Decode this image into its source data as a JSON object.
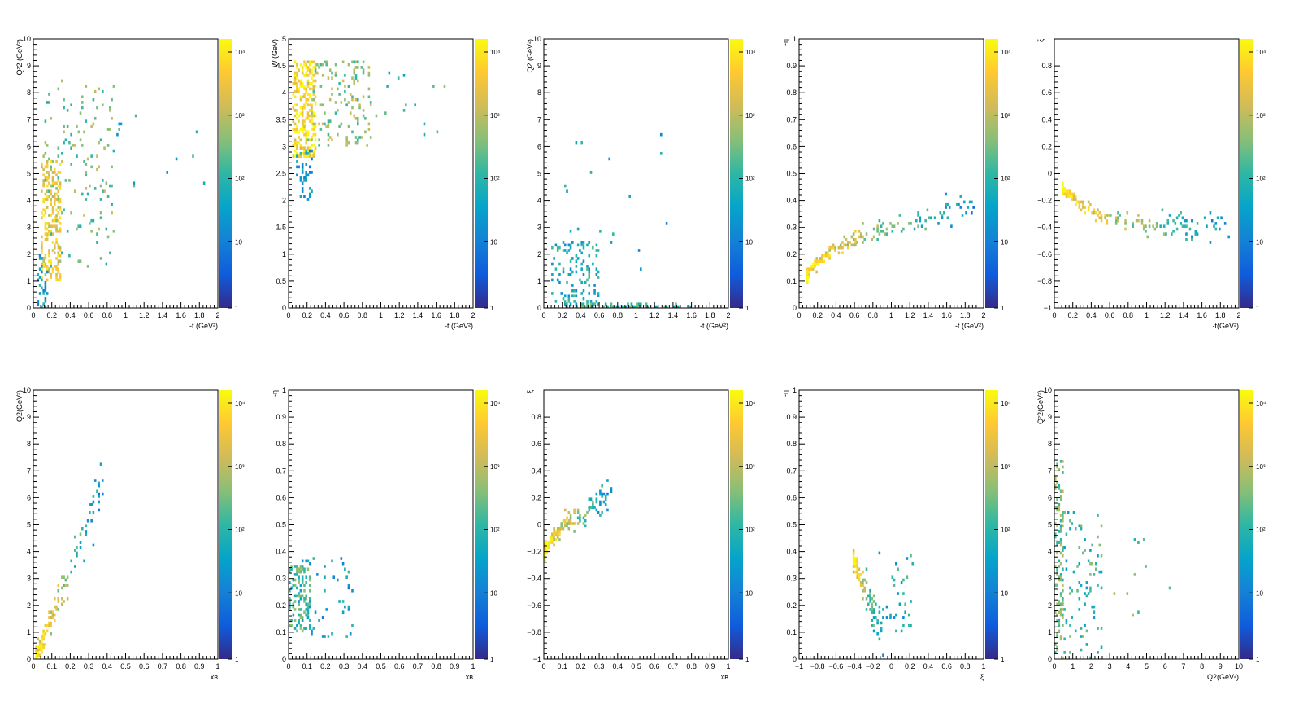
{
  "colorbar": {
    "stops": [
      "#352a87",
      "#0f5cdd",
      "#1481d6",
      "#06a4ca",
      "#2eb7a4",
      "#87bf77",
      "#d1bb59",
      "#fec832",
      "#f9fb0e"
    ],
    "ticks": [
      "1",
      "10",
      "10²",
      "10³",
      "10⁴"
    ]
  },
  "chart_data": [
    {
      "type": "heatmap",
      "xlabel": "-t (GeV²)",
      "ylabel": "Q²2 (GeV²)",
      "xlim": [
        0,
        2
      ],
      "ylim": [
        0,
        10
      ],
      "xticks": [
        0,
        0.2,
        0.4,
        0.6,
        0.8,
        1,
        1.2,
        1.4,
        1.6,
        1.8,
        2
      ],
      "yticks": [
        0,
        1,
        2,
        3,
        4,
        5,
        6,
        7,
        8,
        9,
        10
      ],
      "blobs": [
        {
          "x": [
            0.08,
            0.3
          ],
          "y": [
            1.0,
            5.5
          ],
          "n": 220,
          "level": 0.82
        },
        {
          "x": [
            0.1,
            0.9
          ],
          "y": [
            1.5,
            8.5
          ],
          "n": 150,
          "level": 0.6
        },
        {
          "x": [
            0.05,
            0.15
          ],
          "y": [
            0.0,
            2.0
          ],
          "n": 40,
          "level": 0.35
        },
        {
          "x": [
            0.9,
            1.9
          ],
          "y": [
            4.5,
            7.5
          ],
          "n": 12,
          "level": 0.45
        }
      ]
    },
    {
      "type": "heatmap",
      "xlabel": "-t (GeV²)",
      "ylabel": "W (GeV)",
      "xlim": [
        0,
        2
      ],
      "ylim": [
        0,
        5
      ],
      "xticks": [
        0,
        0.2,
        0.4,
        0.6,
        0.8,
        1,
        1.2,
        1.4,
        1.6,
        1.8,
        2
      ],
      "yticks": [
        0,
        0.5,
        1,
        1.5,
        2,
        2.5,
        3,
        3.5,
        4,
        4.5,
        5
      ],
      "blobs": [
        {
          "x": [
            0.05,
            0.3
          ],
          "y": [
            2.8,
            4.6
          ],
          "n": 260,
          "level": 0.9
        },
        {
          "x": [
            0.2,
            0.9
          ],
          "y": [
            3.0,
            4.6
          ],
          "n": 150,
          "level": 0.62
        },
        {
          "x": [
            0.08,
            0.25
          ],
          "y": [
            2.0,
            3.0
          ],
          "n": 50,
          "level": 0.35
        },
        {
          "x": [
            0.9,
            1.9
          ],
          "y": [
            3.2,
            4.4
          ],
          "n": 14,
          "level": 0.5
        }
      ]
    },
    {
      "type": "heatmap",
      "xlabel": "-t (GeV²)",
      "ylabel": "Q2 (GeV²)",
      "xlim": [
        0,
        2
      ],
      "ylim": [
        0,
        10
      ],
      "xticks": [
        0,
        0.2,
        0.4,
        0.6,
        0.8,
        1,
        1.2,
        1.4,
        1.6,
        1.8,
        2
      ],
      "yticks": [
        0,
        1,
        2,
        3,
        4,
        5,
        6,
        7,
        8,
        9,
        10
      ],
      "blobs": [
        {
          "x": [
            0.08,
            0.6
          ],
          "y": [
            0.0,
            2.5
          ],
          "n": 120,
          "level": 0.42
        },
        {
          "x": [
            0.2,
            1.6
          ],
          "y": [
            0.0,
            0.15
          ],
          "n": 60,
          "level": 0.5
        },
        {
          "x": [
            0.2,
            1.4
          ],
          "y": [
            1.0,
            6.5
          ],
          "n": 18,
          "level": 0.38
        }
      ]
    },
    {
      "type": "heatmap",
      "xlabel": "-t (GeV²)",
      "ylabel": "-η",
      "xlim": [
        0,
        2
      ],
      "ylim": [
        0,
        1
      ],
      "xticks": [
        0,
        0.2,
        0.4,
        0.6,
        0.8,
        1,
        1.2,
        1.4,
        1.6,
        1.8,
        2
      ],
      "yticks": [
        0,
        0.1,
        0.2,
        0.3,
        0.4,
        0.5,
        0.6,
        0.7,
        0.8,
        0.9,
        1
      ],
      "curve": {
        "fn": "sqrt",
        "x0": 0.08,
        "x1": 1.9,
        "y0": 0.1,
        "span": 0.28,
        "n": 200,
        "spread": 0.025
      }
    },
    {
      "type": "heatmap",
      "xlabel": "-t(GeV²)",
      "ylabel": "ξ",
      "xlim": [
        0,
        2
      ],
      "ylim": [
        -1,
        1
      ],
      "xticks": [
        0,
        0.2,
        0.4,
        0.6,
        0.8,
        1,
        1.2,
        1.4,
        1.6,
        1.8,
        2
      ],
      "yticks": [
        -1,
        -0.8,
        -0.6,
        -0.4,
        -0.2,
        0,
        0.2,
        0.4,
        0.6,
        0.8
      ],
      "curve": {
        "fn": "decay",
        "x0": 0.08,
        "x1": 1.9,
        "y0": -0.1,
        "span": -0.3,
        "n": 200,
        "spread": 0.05
      }
    },
    {
      "type": "heatmap",
      "xlabel": "xʙ",
      "ylabel": "Q2(GeV²)",
      "xlim": [
        0,
        1
      ],
      "ylim": [
        0,
        10
      ],
      "xticks": [
        0,
        0.1,
        0.2,
        0.3,
        0.4,
        0.5,
        0.6,
        0.7,
        0.8,
        0.9,
        1
      ],
      "yticks": [
        0,
        1,
        2,
        3,
        4,
        5,
        6,
        7,
        8,
        9,
        10
      ],
      "curve": {
        "fn": "linear",
        "x0": 0.01,
        "x1": 0.38,
        "y0": 0.0,
        "span": 6.5,
        "n": 150,
        "spread": 0.5
      }
    },
    {
      "type": "heatmap",
      "xlabel": "xʙ",
      "ylabel": "-η",
      "xlim": [
        0,
        1
      ],
      "ylim": [
        0,
        1
      ],
      "xticks": [
        0,
        0.1,
        0.2,
        0.3,
        0.4,
        0.5,
        0.6,
        0.7,
        0.8,
        0.9,
        1
      ],
      "yticks": [
        0,
        0.1,
        0.2,
        0.3,
        0.4,
        0.5,
        0.6,
        0.7,
        0.8,
        0.9,
        1
      ],
      "blobs": [
        {
          "x": [
            0.0,
            0.12
          ],
          "y": [
            0.1,
            0.35
          ],
          "n": 120,
          "level": 0.52
        },
        {
          "x": [
            0.05,
            0.35
          ],
          "y": [
            0.08,
            0.38
          ],
          "n": 60,
          "level": 0.38
        }
      ]
    },
    {
      "type": "heatmap",
      "xlabel": "xʙ",
      "ylabel": "ξ",
      "xlim": [
        0,
        1
      ],
      "ylim": [
        -1,
        1
      ],
      "xticks": [
        0,
        0.1,
        0.2,
        0.3,
        0.4,
        0.5,
        0.6,
        0.7,
        0.8,
        0.9,
        1
      ],
      "yticks": [
        -1,
        -0.8,
        -0.6,
        -0.4,
        -0.2,
        0,
        0.2,
        0.4,
        0.6,
        0.8
      ],
      "curve": {
        "fn": "sqrt",
        "x0": 0.0,
        "x1": 0.38,
        "y0": -0.25,
        "span": 0.45,
        "n": 170,
        "spread": 0.06
      }
    },
    {
      "type": "heatmap",
      "xlabel": "ξ",
      "ylabel": "-η",
      "xlim": [
        -1,
        1
      ],
      "ylim": [
        0,
        1
      ],
      "xticks": [
        -1,
        -0.8,
        -0.6,
        -0.4,
        -0.2,
        0,
        0.2,
        0.4,
        0.6,
        0.8,
        1
      ],
      "yticks": [
        0,
        0.1,
        0.2,
        0.3,
        0.4,
        0.5,
        0.6,
        0.7,
        0.8,
        0.9,
        1
      ],
      "curve": {
        "fn": "band",
        "x0": -0.42,
        "x1": -0.08,
        "y0": 0.38,
        "span": -0.3,
        "n": 150,
        "spread": 0.04
      },
      "blobs": [
        {
          "x": [
            -0.15,
            0.25
          ],
          "y": [
            0.1,
            0.4
          ],
          "n": 35,
          "level": 0.42
        }
      ]
    },
    {
      "type": "heatmap",
      "xlabel": "Q2(GeV²)",
      "ylabel": "Q²2(GeV²)",
      "xlim": [
        0,
        10
      ],
      "ylim": [
        0,
        10
      ],
      "xticks": [
        0,
        1,
        2,
        3,
        4,
        5,
        6,
        7,
        8,
        9,
        10
      ],
      "yticks": [
        0,
        1,
        2,
        3,
        4,
        5,
        6,
        7,
        8,
        9,
        10
      ],
      "blobs": [
        {
          "x": [
            0.0,
            0.5
          ],
          "y": [
            0.0,
            7.5
          ],
          "n": 120,
          "level": 0.58
        },
        {
          "x": [
            0.4,
            2.6
          ],
          "y": [
            0.0,
            5.5
          ],
          "n": 90,
          "level": 0.5
        },
        {
          "x": [
            2.5,
            6.6
          ],
          "y": [
            1.5,
            4.5
          ],
          "n": 10,
          "level": 0.55
        }
      ]
    }
  ]
}
